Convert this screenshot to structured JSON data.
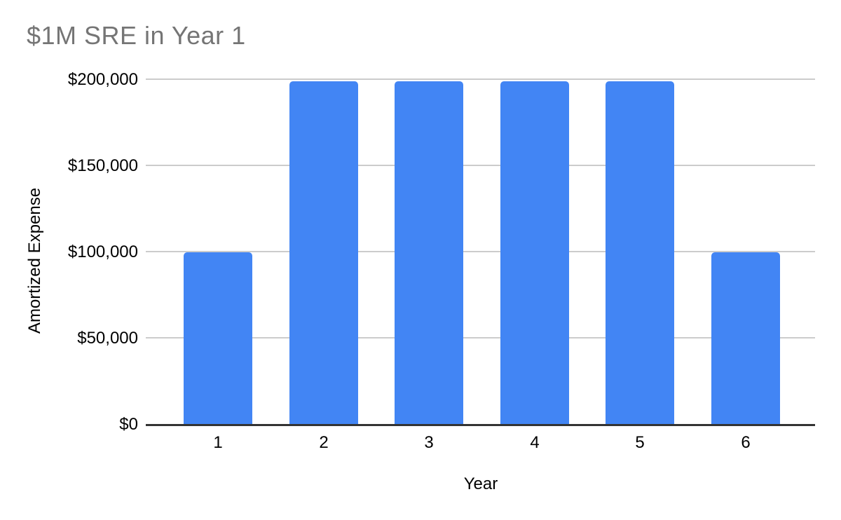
{
  "chart_data": {
    "type": "bar",
    "title": "$1M SRE in Year 1",
    "xlabel": "Year",
    "ylabel": "Amortized Expense",
    "categories": [
      "1",
      "2",
      "3",
      "4",
      "5",
      "6"
    ],
    "values": [
      100000,
      200000,
      200000,
      200000,
      200000,
      100000
    ],
    "ylim": [
      0,
      200000
    ],
    "ytick_interval": 50000,
    "yticks": [
      {
        "value": 0,
        "label": "$0"
      },
      {
        "value": 50000,
        "label": "$50,000"
      },
      {
        "value": 100000,
        "label": "$100,000"
      },
      {
        "value": 150000,
        "label": "$150,000"
      },
      {
        "value": 200000,
        "label": "$200,000"
      }
    ],
    "grid": true,
    "legend_position": "none",
    "colors": {
      "bar": "#4285F4",
      "grid": "#cccccc",
      "axis_line": "#333333",
      "title_text": "#757575",
      "axis_text": "#000000",
      "background": "#ffffff"
    }
  }
}
